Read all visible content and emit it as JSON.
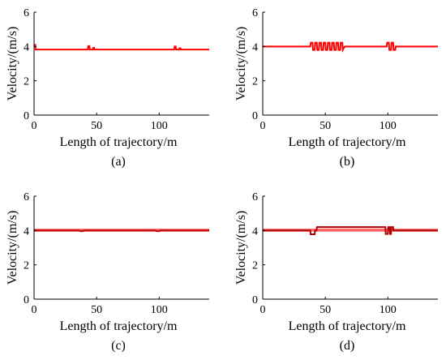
{
  "chart_data": [
    {
      "type": "line",
      "panel_label": "(a)",
      "xlabel": "Length of trajectory/m",
      "ylabel": "Velocity/(m/s)",
      "xlim": [
        0,
        140
      ],
      "ylim": [
        0,
        6
      ],
      "xticks": [
        0,
        50,
        100
      ],
      "yticks": [
        0,
        2,
        4,
        6
      ],
      "grid": false,
      "series": [
        {
          "color": "#ff0000",
          "x": [
            0,
            1,
            1.2,
            2,
            43,
            43.3,
            44.2,
            44.5,
            47,
            47.3,
            48,
            48.3,
            112,
            112.3,
            113.2,
            113.5,
            116,
            116.3,
            117,
            117.3,
            140
          ],
          "y": [
            4.1,
            4.1,
            3.82,
            3.82,
            3.82,
            4.02,
            4.02,
            3.82,
            3.82,
            3.92,
            3.92,
            3.82,
            3.82,
            4.0,
            4.0,
            3.82,
            3.82,
            3.9,
            3.9,
            3.82,
            3.82
          ]
        }
      ]
    },
    {
      "type": "line",
      "panel_label": "(b)",
      "xlabel": "Length of trajectory/m",
      "ylabel": "Velocity/(m/s)",
      "xlim": [
        0,
        140
      ],
      "ylim": [
        0,
        6
      ],
      "xticks": [
        0,
        50,
        100
      ],
      "yticks": [
        0,
        2,
        4,
        6
      ],
      "grid": false,
      "series": [
        {
          "color": "#ff0000",
          "x": [
            0,
            38,
            38.5,
            39.8,
            40.2,
            41.5,
            41.9,
            43.2,
            43.6,
            44.9,
            45.3,
            46.6,
            47,
            48.3,
            48.7,
            50,
            50.4,
            51.7,
            52.1,
            53.4,
            53.8,
            55.1,
            55.5,
            56.8,
            57.2,
            58.5,
            58.9,
            60.2,
            60.6,
            61.9,
            62.3,
            63.6,
            64,
            65.5,
            99,
            99.5,
            100.8,
            101.2,
            102.5,
            102.9,
            104.2,
            104.6,
            105.9,
            106.3,
            140
          ],
          "y": [
            4.0,
            4.0,
            4.22,
            4.22,
            3.8,
            3.8,
            4.22,
            4.22,
            3.8,
            3.8,
            4.22,
            4.22,
            3.8,
            3.8,
            4.22,
            4.22,
            3.8,
            3.8,
            4.22,
            4.22,
            3.8,
            3.8,
            4.22,
            4.22,
            3.8,
            3.8,
            4.22,
            4.22,
            3.8,
            3.8,
            4.22,
            4.22,
            3.8,
            4.0,
            4.0,
            4.22,
            4.22,
            3.8,
            3.8,
            4.22,
            4.22,
            3.8,
            3.8,
            4.0,
            4.0
          ]
        }
      ]
    },
    {
      "type": "line",
      "panel_label": "(c)",
      "xlabel": "Length of trajectory/m",
      "ylabel": "Velocity/(m/s)",
      "xlim": [
        0,
        140
      ],
      "ylim": [
        0,
        6
      ],
      "xticks": [
        0,
        50,
        100
      ],
      "yticks": [
        0,
        2,
        4,
        6
      ],
      "grid": false,
      "series": [
        {
          "color": "#ff6060",
          "x": [
            0,
            140
          ],
          "y": [
            4.02,
            4.02
          ]
        },
        {
          "color": "#c00000",
          "x": [
            0,
            36,
            37,
            39,
            40,
            97,
            98,
            100,
            101,
            140
          ],
          "y": [
            4.0,
            4.0,
            3.96,
            3.96,
            4.0,
            4.0,
            3.96,
            3.96,
            4.0,
            4.0
          ]
        }
      ]
    },
    {
      "type": "line",
      "panel_label": "(d)",
      "xlabel": "Length of trajectory/m",
      "ylabel": "Velocity/(m/s)",
      "xlim": [
        0,
        140
      ],
      "ylim": [
        0,
        6
      ],
      "xticks": [
        0,
        50,
        100
      ],
      "yticks": [
        0,
        2,
        4,
        6
      ],
      "grid": false,
      "series": [
        {
          "color": "#ff6060",
          "x": [
            0,
            140
          ],
          "y": [
            4.02,
            4.02
          ]
        },
        {
          "color": "#b00000",
          "x": [
            0,
            38,
            38.3,
            41.5,
            41.8,
            43,
            43.3,
            98,
            98.3,
            100,
            100.3,
            101.5,
            101.8,
            102.5,
            102.8,
            104.2,
            104.5,
            140
          ],
          "y": [
            4.0,
            4.0,
            3.78,
            3.78,
            4.0,
            4.0,
            4.2,
            4.2,
            3.8,
            3.8,
            4.2,
            4.2,
            3.8,
            3.8,
            4.2,
            4.2,
            4.0,
            4.0
          ]
        }
      ]
    }
  ]
}
